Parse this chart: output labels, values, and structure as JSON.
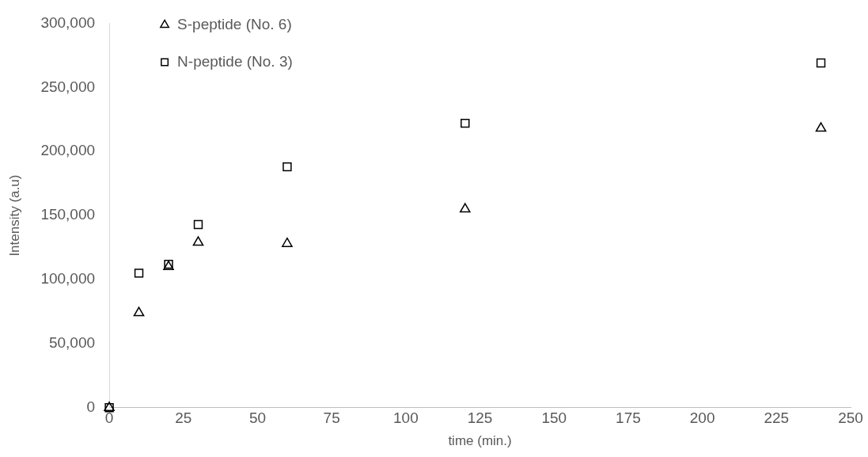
{
  "chart_data": {
    "type": "scatter",
    "xlabel": "time (min.)",
    "ylabel": "Intensity (a.u)",
    "xlim": [
      0,
      250
    ],
    "xticks": [
      0,
      25,
      50,
      75,
      100,
      125,
      150,
      175,
      200,
      225,
      250
    ],
    "ylim": [
      0,
      300000
    ],
    "yticks": [
      {
        "value": 0,
        "label": "0"
      },
      {
        "value": 50000,
        "label": "50,000"
      },
      {
        "value": 100000,
        "label": "100,000"
      },
      {
        "value": 150000,
        "label": "150,000"
      },
      {
        "value": 200000,
        "label": "200,000"
      },
      {
        "value": 250000,
        "label": "250,000"
      },
      {
        "value": 300000,
        "label": "300,000"
      }
    ],
    "grid": false,
    "legend": "top left",
    "series": [
      {
        "name": "S-peptide (No. 6)",
        "color": "#000000",
        "marker": "triangle",
        "x": [
          0,
          10,
          20,
          30,
          60,
          120,
          240
        ],
        "values": [
          0,
          74000,
          110000,
          129000,
          128000,
          155000,
          218000
        ]
      },
      {
        "name": "N-peptide (No. 3)",
        "color": "#000000",
        "marker": "square",
        "x": [
          0,
          10,
          20,
          30,
          60,
          120,
          240
        ],
        "values": [
          0,
          105000,
          112000,
          143000,
          188000,
          222000,
          269000
        ]
      }
    ]
  }
}
